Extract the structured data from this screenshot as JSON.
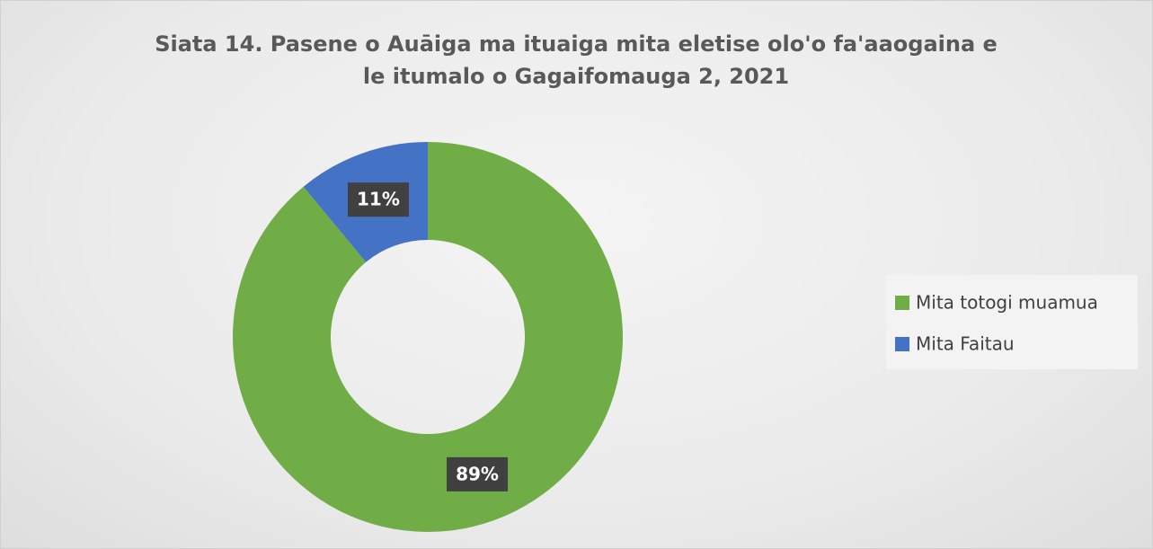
{
  "chart_data": {
    "type": "donut",
    "title": "Siata 14. Pasene o Auāiga ma ituaiga mita eletise olo'o fa'aaogaina e le itumalo o Gagaifomauga 2, 2021",
    "series": [
      {
        "name": "Mita totogi muamua",
        "color": "#70ad47",
        "values": [
          89
        ],
        "value_labels": [
          "89%"
        ]
      },
      {
        "name": "Mita Faitau",
        "color": "#4472c4",
        "values": [
          11
        ],
        "value_labels": [
          "11%"
        ]
      }
    ],
    "legend": "right"
  }
}
